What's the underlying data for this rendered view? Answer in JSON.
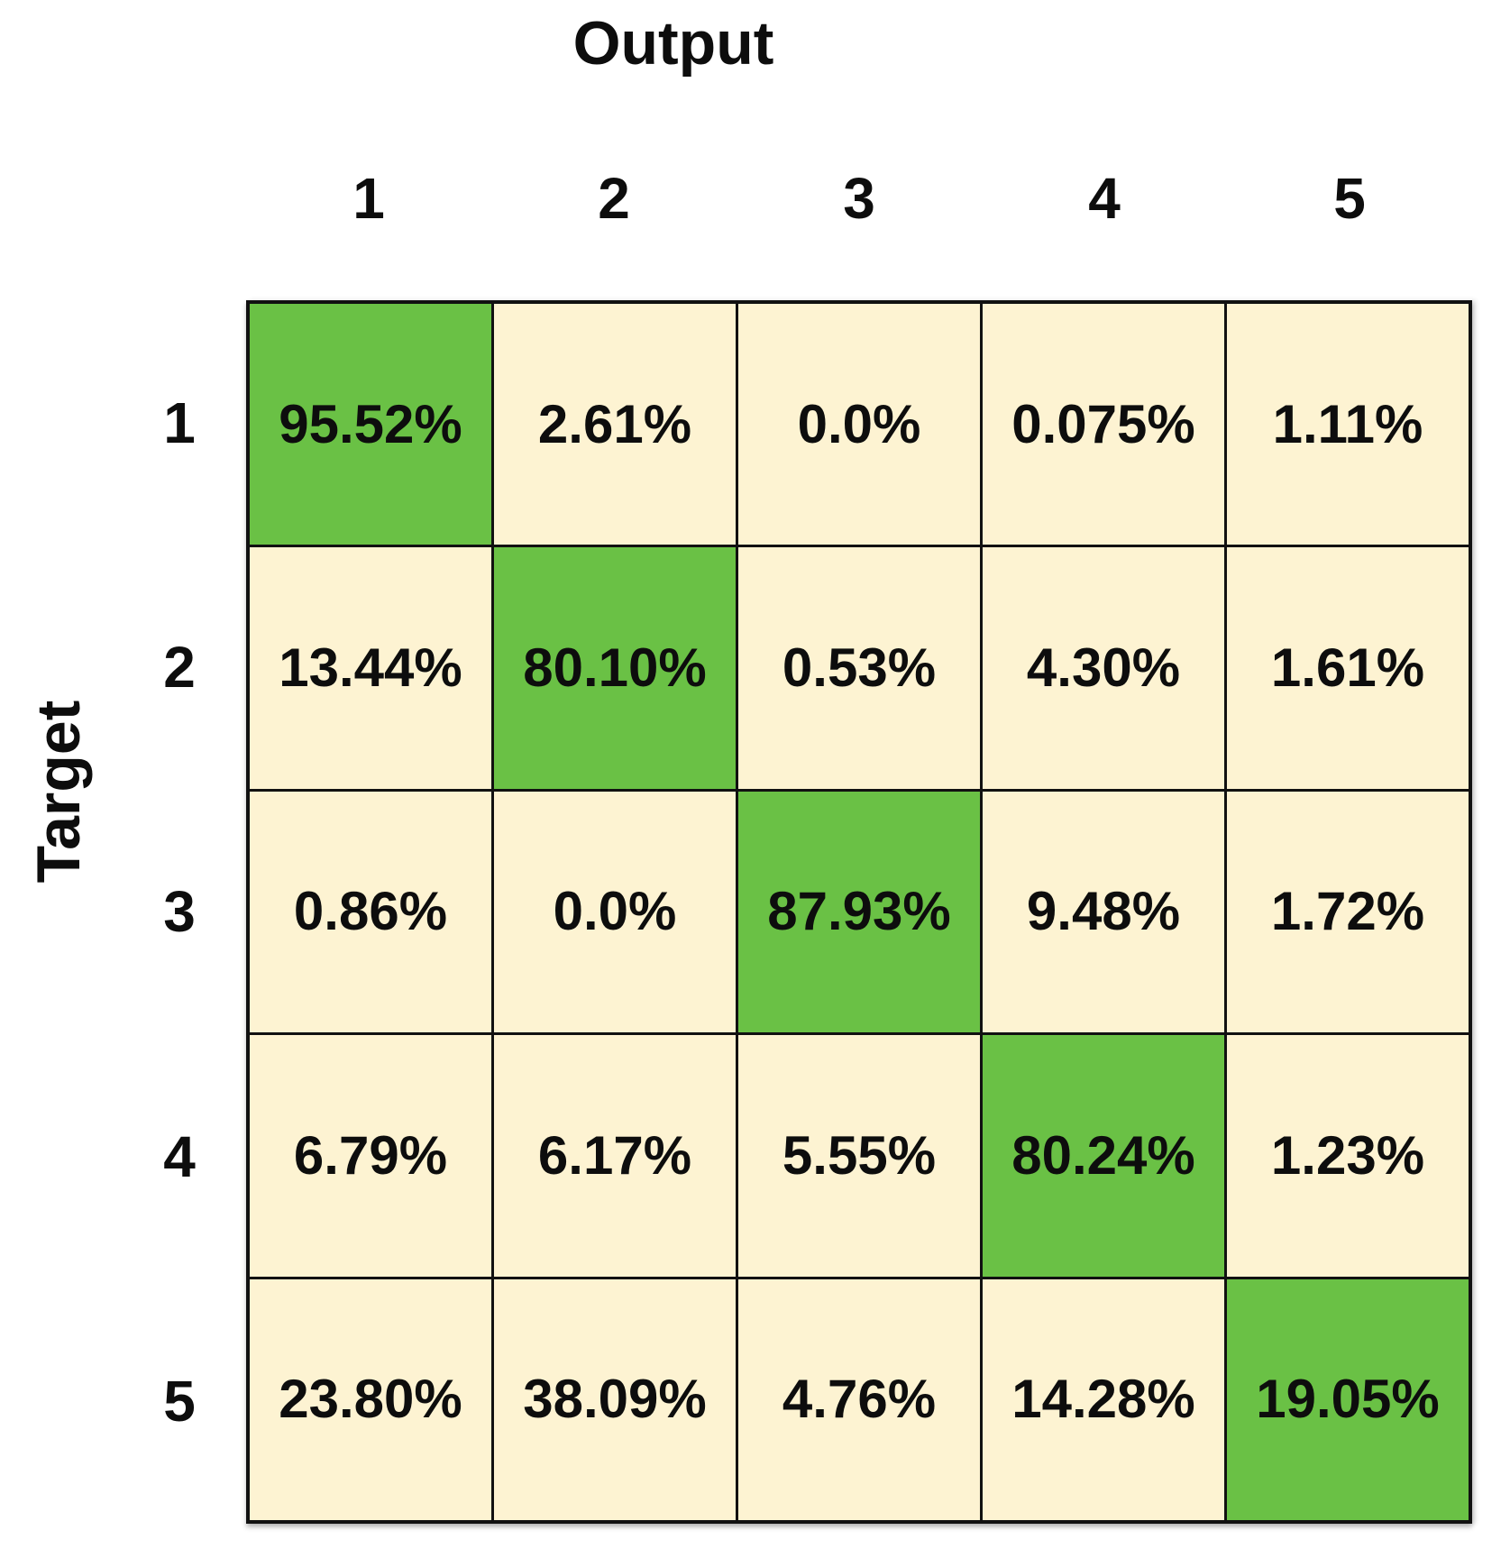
{
  "figure": {
    "x_axis_title": "Output",
    "y_axis_title": "Target",
    "col_labels": [
      "1",
      "2",
      "3",
      "4",
      "5"
    ],
    "row_labels": [
      "1",
      "2",
      "3",
      "4",
      "5"
    ],
    "cells": [
      [
        "95.52%",
        "2.61%",
        "0.0%",
        "0.075%",
        "1.11%"
      ],
      [
        "13.44%",
        "80.10%",
        "0.53%",
        "4.30%",
        "1.61%"
      ],
      [
        "0.86%",
        "0.0%",
        "87.93%",
        "9.48%",
        "1.72%"
      ],
      [
        "6.79%",
        "6.17%",
        "5.55%",
        "80.24%",
        "1.23%"
      ],
      [
        "23.80%",
        "38.09%",
        "4.76%",
        "14.28%",
        "19.05%"
      ]
    ]
  },
  "colors": {
    "diagonal": "#6ac145",
    "off_diagonal": "#fdf3d2",
    "grid_line": "#111111",
    "text": "#0d0d0d",
    "page_bg": "#ffffff"
  },
  "chart_data": {
    "type": "heatmap",
    "title": "",
    "xlabel": "Output",
    "ylabel": "Target",
    "x_categories": [
      "1",
      "2",
      "3",
      "4",
      "5"
    ],
    "y_categories": [
      "1",
      "2",
      "3",
      "4",
      "5"
    ],
    "values_percent": [
      [
        95.52,
        2.61,
        0.0,
        0.075,
        1.11
      ],
      [
        13.44,
        80.1,
        0.53,
        4.3,
        1.61
      ],
      [
        0.86,
        0.0,
        87.93,
        9.48,
        1.72
      ],
      [
        6.79,
        6.17,
        5.55,
        80.24,
        1.23
      ],
      [
        23.8,
        38.09,
        4.76,
        14.28,
        19.05
      ]
    ],
    "cell_color_rule": "diagonal cells green (#6ac145), off-diagonal cream (#fdf3d2)",
    "grid": "on",
    "legend": "none"
  }
}
